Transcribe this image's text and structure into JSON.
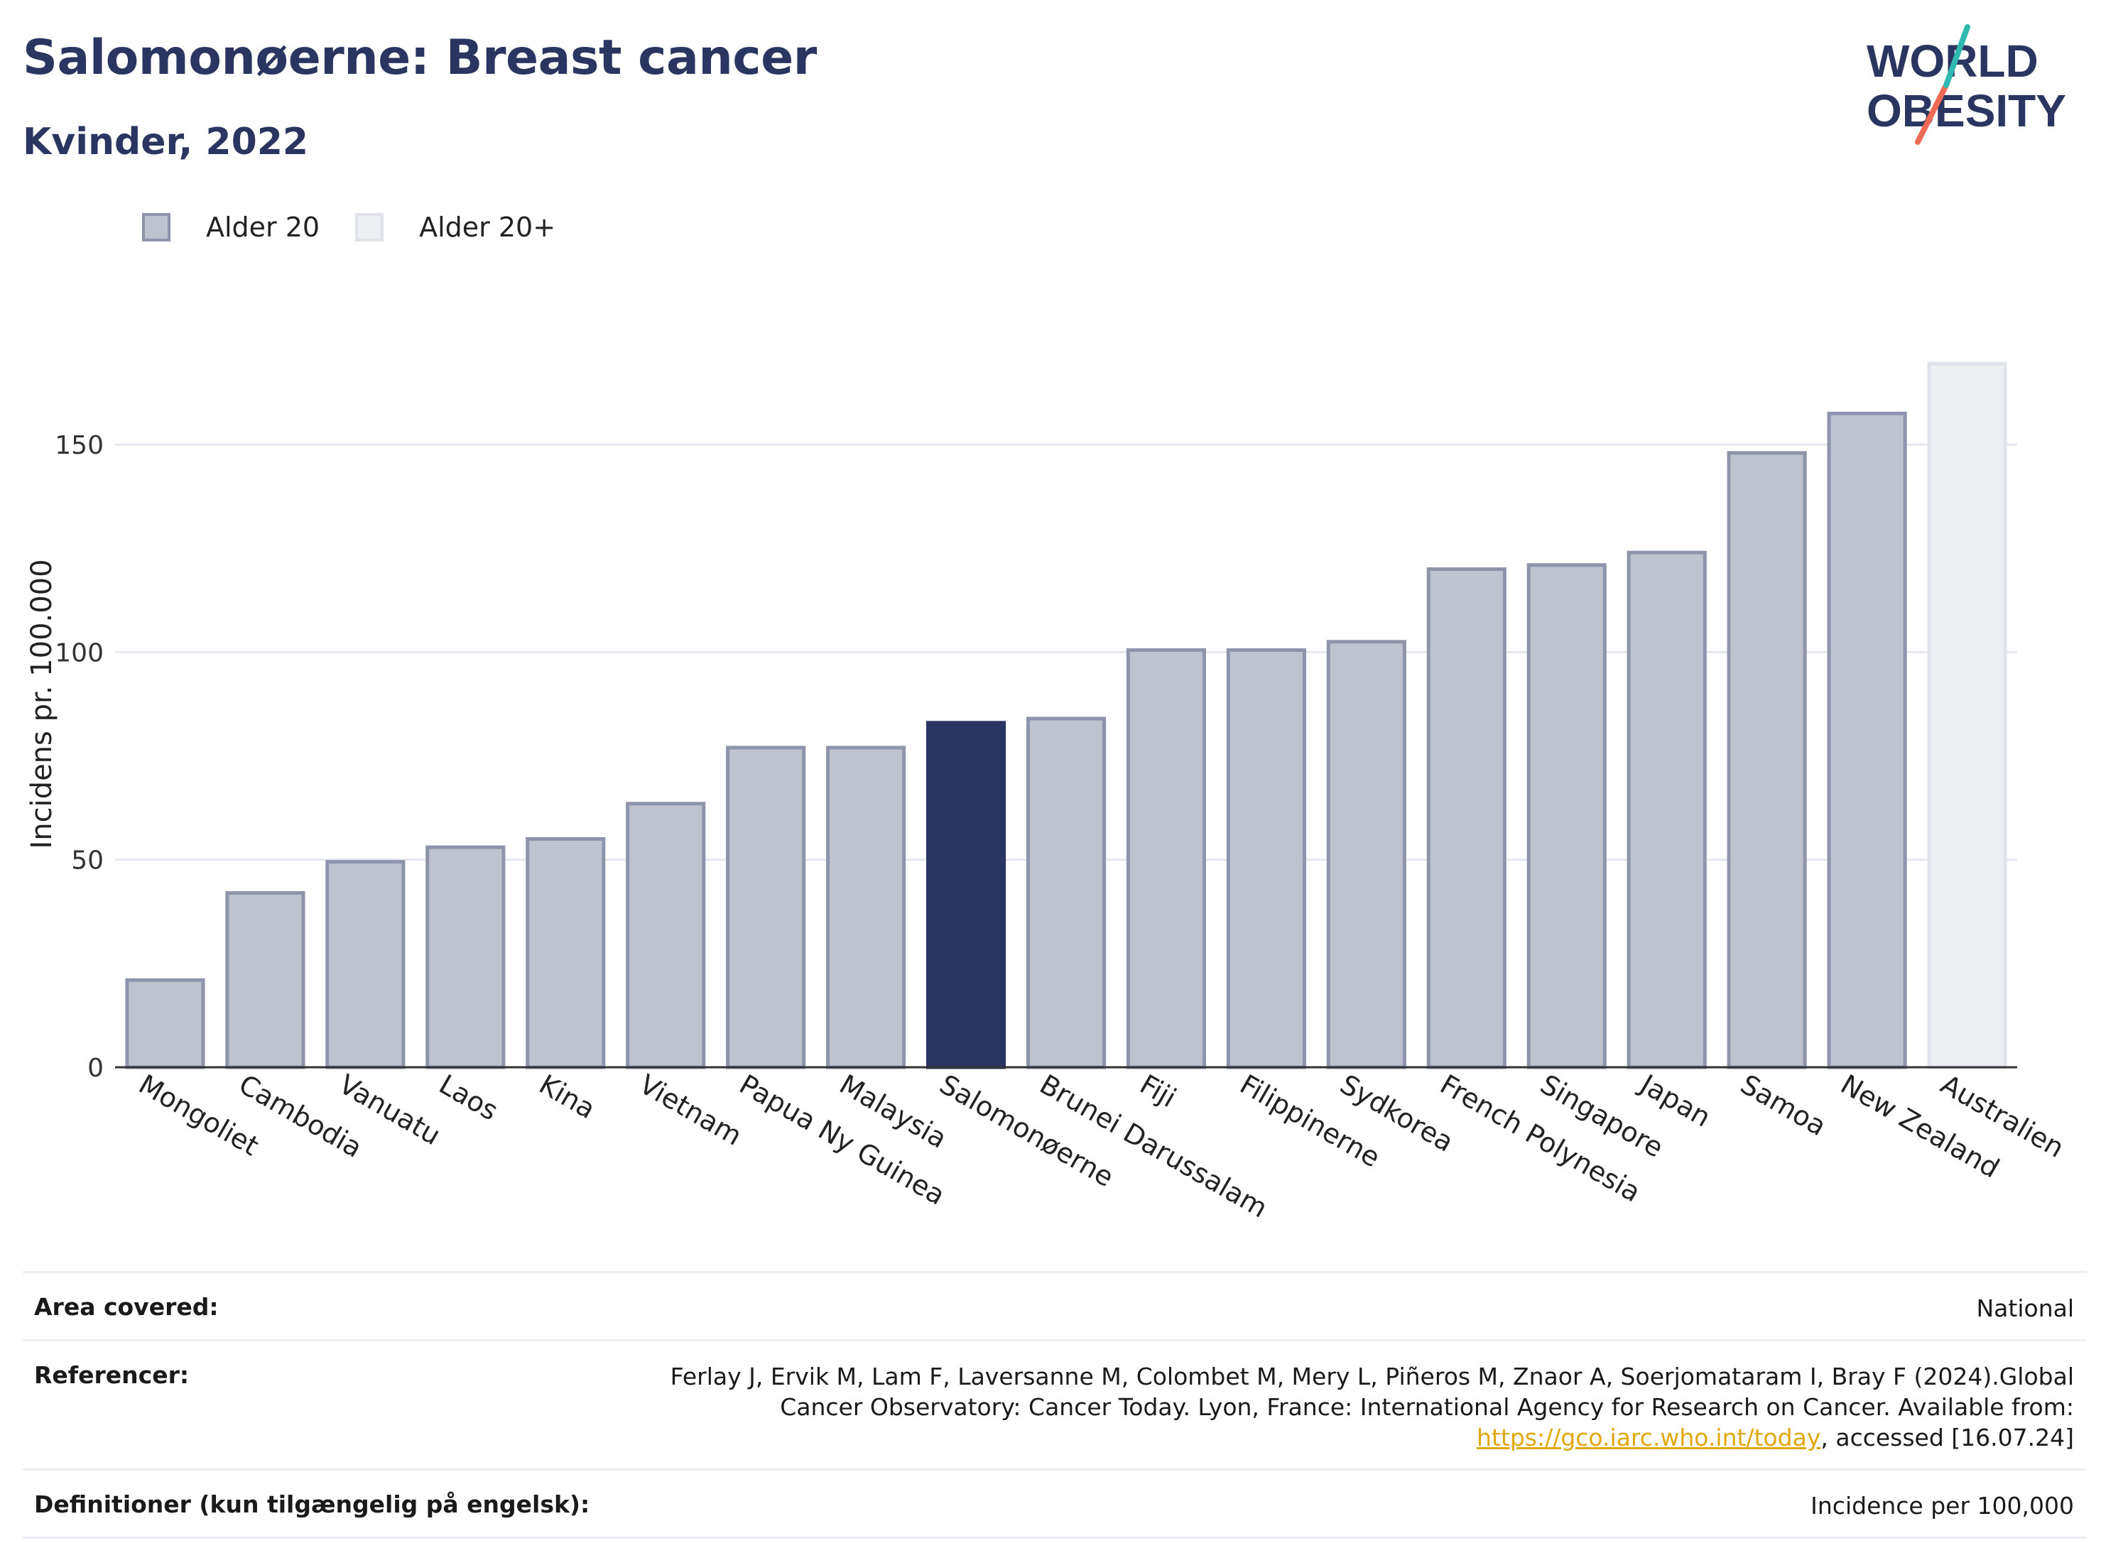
{
  "header": {
    "title": "Salomonøerne: Breast cancer",
    "subtitle": "Kvinder, 2022"
  },
  "logo": {
    "line1": "WORLD",
    "line2": "OBESITY"
  },
  "legend": {
    "items": [
      {
        "label": "Alder 20",
        "color": "#bfc3cf"
      },
      {
        "label": "Alder 20+",
        "color": "#eeeff3"
      }
    ]
  },
  "chart_data": {
    "type": "bar",
    "ylabel": "Incidens pr. 100.000",
    "ylim": [
      0,
      175
    ],
    "yticks": [
      0,
      50,
      100,
      150
    ],
    "grid": true,
    "highlight": "Salomonøerne",
    "highlight_color": "#2b3660",
    "categories": [
      "Mongoliet",
      "Cambodia",
      "Vanuatu",
      "Laos",
      "Kina",
      "Vietnam",
      "Papua Ny Guinea",
      "Malaysia",
      "Salomonøerne",
      "Brunei Darussalam",
      "Fiji",
      "Filippinerne",
      "Sydkorea",
      "French Polynesia",
      "Singapore",
      "Japan",
      "Samoa",
      "New Zealand",
      "Australien"
    ],
    "values": [
      21,
      42,
      49.5,
      53,
      55,
      63.5,
      77,
      77,
      83,
      84,
      100.5,
      100.5,
      102.5,
      120,
      121,
      124,
      148,
      157.5,
      169.5
    ],
    "series_group": [
      "Alder 20",
      "Alder 20",
      "Alder 20",
      "Alder 20",
      "Alder 20",
      "Alder 20",
      "Alder 20",
      "Alder 20",
      "Alder 20",
      "Alder 20",
      "Alder 20",
      "Alder 20",
      "Alder 20",
      "Alder 20",
      "Alder 20",
      "Alder 20",
      "Alder 20",
      "Alder 20",
      "Alder 20+"
    ]
  },
  "info": {
    "area_label": "Area covered:",
    "area_value": "National",
    "ref_label": "Referencer:",
    "ref_text_1": "Ferlay J, Ervik M, Lam F, Laversanne M, Colombet M, Mery L, Piñeros M, Znaor A, Soerjomataram I, Bray F (2024).Global Cancer Observatory: Cancer Today. Lyon, France: International Agency for Research on Cancer. Available from: ",
    "ref_link": "https://gco.iarc.who.int/today",
    "ref_text_2": ", accessed [16.07.24]",
    "def_label": "Definitioner (kun tilgængelig på engelsk):",
    "def_value": "Incidence per 100,000"
  }
}
